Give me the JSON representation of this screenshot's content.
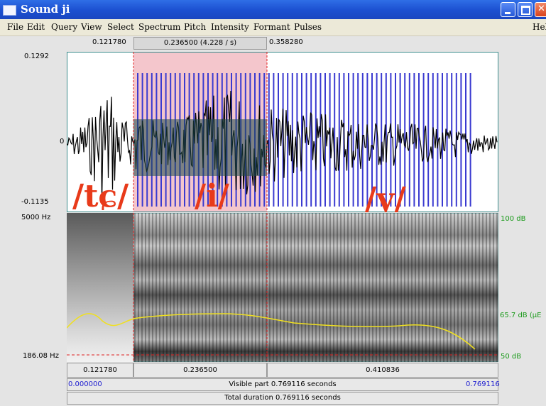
{
  "window": {
    "title": "Sound ji"
  },
  "menu": [
    "File",
    "Edit",
    "Query",
    "View",
    "Select",
    "Spectrum",
    "Pitch",
    "Intensity",
    "Formant",
    "Pulses",
    "Hel"
  ],
  "selection": {
    "start": "0.121780",
    "duration": "0.236500 (4.228 / s)",
    "end": "0.358280"
  },
  "waveform": {
    "y_max": "0.1292",
    "y_zero": "0",
    "y_min": "-0.1135"
  },
  "annotations": {
    "seg1": "/tɕ/",
    "seg2": "/i/",
    "seg3": "/y/"
  },
  "spectrogram": {
    "freq_top": "5000 Hz",
    "pitch_value": "186.08 Hz",
    "db_top": "100 dB",
    "db_mid": "65.7 dB (µE",
    "db_bottom": "50 dB"
  },
  "bottom": {
    "seg_left": "0.121780",
    "seg_mid": "0.236500",
    "seg_right": "0.410836",
    "visible_start": "0.000000",
    "visible_label": "Visible part 0.769116 seconds",
    "visible_end": "0.769116",
    "total_label": "Total duration 0.769116 seconds"
  },
  "colors": {
    "titlebar": "#1b4fd0",
    "selection_pink": "#f4c6cc",
    "pulse_blue": "#3a3ad0",
    "cursor_red": "#e02020",
    "intensity_yellow": "#f0e020",
    "db_green": "#1a9a1a"
  }
}
